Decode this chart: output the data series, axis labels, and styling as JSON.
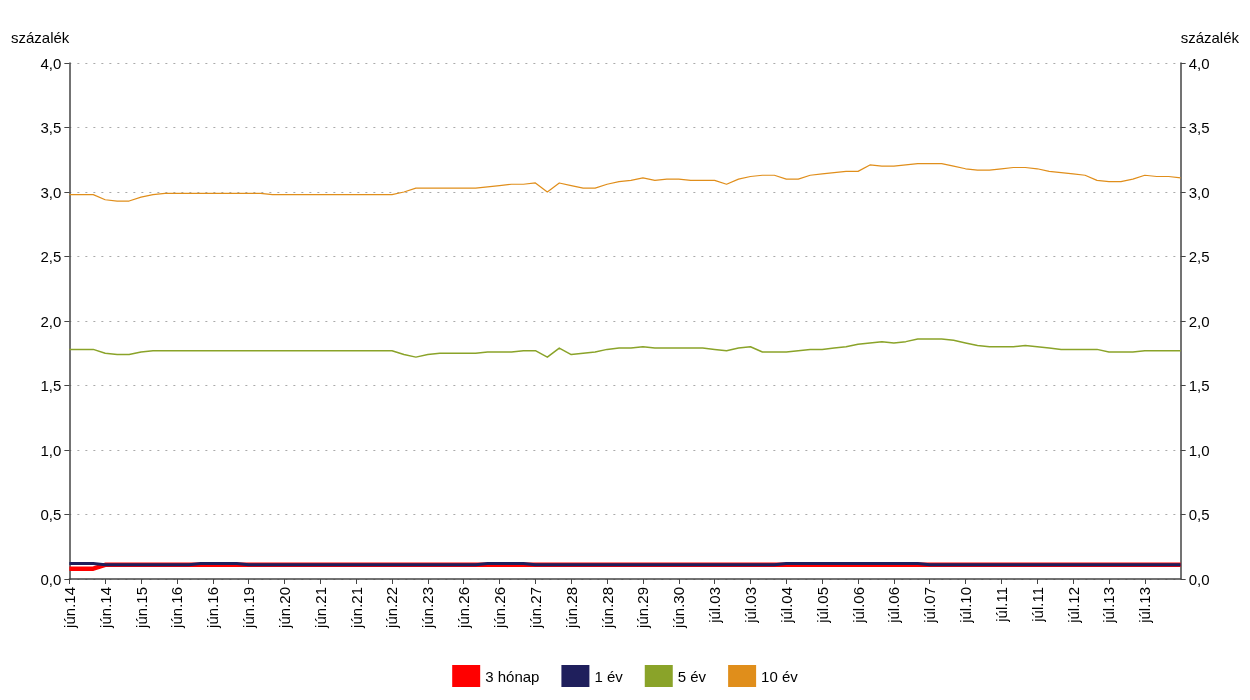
{
  "chart_data": {
    "type": "line",
    "ylabel": "százalék",
    "y2label": "százalék",
    "categories": [
      "jún.14",
      null,
      null,
      "jún.14",
      null,
      null,
      "jún.15",
      null,
      null,
      "jún.16",
      null,
      null,
      "jún.16",
      null,
      null,
      "jún.19",
      null,
      null,
      "jún.20",
      null,
      null,
      "jún.21",
      null,
      null,
      "jún.21",
      null,
      null,
      "jún.22",
      null,
      null,
      "jún.23",
      null,
      null,
      "jún.26",
      null,
      null,
      "jún.26",
      null,
      null,
      "jún.27",
      null,
      null,
      "jún.28",
      null,
      null,
      "jún.28",
      null,
      null,
      "jún.29",
      null,
      null,
      "jún.30",
      null,
      null,
      "júl.03",
      null,
      null,
      "júl.03",
      null,
      null,
      "júl.04",
      null,
      null,
      "júl.05",
      null,
      null,
      "júl.06",
      null,
      null,
      "júl.06",
      null,
      null,
      "júl.07",
      null,
      null,
      "júl.10",
      null,
      null,
      "júl.11",
      null,
      null,
      "júl.11",
      null,
      null,
      "júl.12",
      null,
      null,
      "júl.13",
      null,
      null,
      "júl.13",
      null,
      null,
      null
    ],
    "series": [
      {
        "name": "3 hónap",
        "color": "#ff0000",
        "values": [
          0.08,
          0.08,
          0.08,
          0.11,
          0.11,
          0.11,
          0.11,
          0.11,
          0.11,
          0.11,
          0.11,
          0.11,
          0.11,
          0.11,
          0.11,
          0.11,
          0.11,
          0.11,
          0.11,
          0.11,
          0.11,
          0.11,
          0.11,
          0.11,
          0.11,
          0.11,
          0.11,
          0.11,
          0.11,
          0.11,
          0.11,
          0.11,
          0.11,
          0.11,
          0.11,
          0.11,
          0.11,
          0.11,
          0.11,
          0.11,
          0.11,
          0.11,
          0.11,
          0.11,
          0.11,
          0.11,
          0.11,
          0.11,
          0.11,
          0.11,
          0.11,
          0.11,
          0.11,
          0.11,
          0.11,
          0.11,
          0.11,
          0.11,
          0.11,
          0.11,
          0.11,
          0.11,
          0.11,
          0.11,
          0.11,
          0.11,
          0.11,
          0.11,
          0.11,
          0.11,
          0.11,
          0.11,
          0.11,
          0.11,
          0.11,
          0.11,
          0.11,
          0.11,
          0.11,
          0.11,
          0.11,
          0.11,
          0.11,
          0.11,
          0.11,
          0.11,
          0.11,
          0.11,
          0.11,
          0.11,
          0.11,
          0.11,
          0.11,
          0.11
        ]
      },
      {
        "name": "1 év",
        "color": "#1f1f5c",
        "values": [
          0.12,
          0.12,
          0.12,
          0.11,
          0.11,
          0.11,
          0.11,
          0.11,
          0.11,
          0.11,
          0.11,
          0.12,
          0.12,
          0.12,
          0.12,
          0.11,
          0.11,
          0.11,
          0.11,
          0.11,
          0.11,
          0.11,
          0.11,
          0.11,
          0.11,
          0.11,
          0.11,
          0.11,
          0.11,
          0.11,
          0.11,
          0.11,
          0.11,
          0.11,
          0.11,
          0.12,
          0.12,
          0.12,
          0.12,
          0.11,
          0.11,
          0.11,
          0.11,
          0.11,
          0.11,
          0.11,
          0.11,
          0.11,
          0.11,
          0.11,
          0.11,
          0.11,
          0.11,
          0.11,
          0.11,
          0.11,
          0.11,
          0.11,
          0.11,
          0.11,
          0.12,
          0.12,
          0.12,
          0.12,
          0.12,
          0.12,
          0.12,
          0.12,
          0.12,
          0.12,
          0.12,
          0.12,
          0.11,
          0.11,
          0.11,
          0.11,
          0.11,
          0.11,
          0.11,
          0.11,
          0.11,
          0.11,
          0.11,
          0.11,
          0.11,
          0.11,
          0.11,
          0.11,
          0.11,
          0.11,
          0.11,
          0.11,
          0.11,
          0.11
        ]
      },
      {
        "name": "5 év",
        "color": "#8aa329",
        "values": [
          1.78,
          1.78,
          1.78,
          1.75,
          1.74,
          1.74,
          1.76,
          1.77,
          1.77,
          1.77,
          1.77,
          1.77,
          1.77,
          1.77,
          1.77,
          1.77,
          1.77,
          1.77,
          1.77,
          1.77,
          1.77,
          1.77,
          1.77,
          1.77,
          1.77,
          1.77,
          1.77,
          1.77,
          1.74,
          1.72,
          1.74,
          1.75,
          1.75,
          1.75,
          1.75,
          1.76,
          1.76,
          1.76,
          1.77,
          1.77,
          1.72,
          1.79,
          1.74,
          1.75,
          1.76,
          1.78,
          1.79,
          1.79,
          1.8,
          1.79,
          1.79,
          1.79,
          1.79,
          1.79,
          1.78,
          1.77,
          1.79,
          1.8,
          1.76,
          1.76,
          1.76,
          1.77,
          1.78,
          1.78,
          1.79,
          1.8,
          1.82,
          1.83,
          1.84,
          1.83,
          1.84,
          1.86,
          1.86,
          1.86,
          1.85,
          1.83,
          1.81,
          1.8,
          1.8,
          1.8,
          1.81,
          1.8,
          1.79,
          1.78,
          1.78,
          1.78,
          1.78,
          1.76,
          1.76,
          1.76,
          1.77,
          1.77,
          1.77,
          1.77
        ]
      },
      {
        "name": "10 év",
        "color": "#e08e1b",
        "values": [
          2.98,
          2.98,
          2.98,
          2.94,
          2.93,
          2.93,
          2.96,
          2.98,
          2.99,
          2.99,
          2.99,
          2.99,
          2.99,
          2.99,
          2.99,
          2.99,
          2.99,
          2.98,
          2.98,
          2.98,
          2.98,
          2.98,
          2.98,
          2.98,
          2.98,
          2.98,
          2.98,
          2.98,
          3.0,
          3.03,
          3.03,
          3.03,
          3.03,
          3.03,
          3.03,
          3.04,
          3.05,
          3.06,
          3.06,
          3.07,
          3.0,
          3.07,
          3.05,
          3.03,
          3.03,
          3.06,
          3.08,
          3.09,
          3.11,
          3.09,
          3.1,
          3.1,
          3.09,
          3.09,
          3.09,
          3.06,
          3.1,
          3.12,
          3.13,
          3.13,
          3.1,
          3.1,
          3.13,
          3.14,
          3.15,
          3.16,
          3.16,
          3.21,
          3.2,
          3.2,
          3.21,
          3.22,
          3.22,
          3.22,
          3.2,
          3.18,
          3.17,
          3.17,
          3.18,
          3.19,
          3.19,
          3.18,
          3.16,
          3.15,
          3.14,
          3.13,
          3.09,
          3.08,
          3.08,
          3.1,
          3.13,
          3.12,
          3.12,
          3.11
        ]
      }
    ],
    "ylim": [
      0,
      4
    ],
    "yticks": [
      {
        "value": 0,
        "label": "0,0"
      },
      {
        "value": 0.5,
        "label": "0,5"
      },
      {
        "value": 1,
        "label": "1,0"
      },
      {
        "value": 1.5,
        "label": "1,5"
      },
      {
        "value": 2,
        "label": "2,0"
      },
      {
        "value": 2.5,
        "label": "2,5"
      },
      {
        "value": 3,
        "label": "3,0"
      },
      {
        "value": 3.5,
        "label": "3,5"
      },
      {
        "value": 4,
        "label": "4,0"
      }
    ],
    "y2lim": [
      0,
      4
    ],
    "y2ticks": [
      {
        "value": 0,
        "label": "0,0"
      },
      {
        "value": 0.5,
        "label": "0,5"
      },
      {
        "value": 1,
        "label": "1,0"
      },
      {
        "value": 1.5,
        "label": "1,5"
      },
      {
        "value": 2,
        "label": "2,0"
      },
      {
        "value": 2.5,
        "label": "2,5"
      },
      {
        "value": 3,
        "label": "3,0"
      },
      {
        "value": 3.5,
        "label": "3,5"
      },
      {
        "value": 4,
        "label": "4,0"
      }
    ],
    "grid": "y",
    "legend": "bottom",
    "marker": "none",
    "line_style": "solid"
  }
}
